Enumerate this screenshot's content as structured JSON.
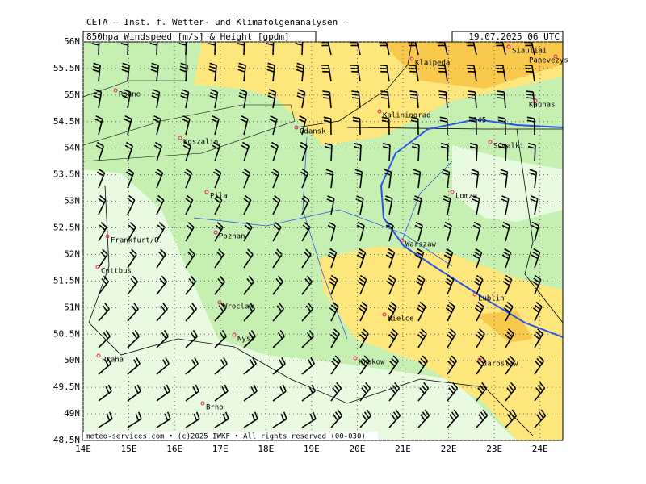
{
  "header": {
    "institute": "CETA — Inst. f. Wetter- und Klimafolgenanalysen —",
    "parameter": "850hpa Windspeed [m/s] & Height [gpdm]",
    "valid": "19.07.2025 06 UTC"
  },
  "map": {
    "xticks": [
      {
        "value": 14,
        "label": "14E"
      },
      {
        "value": 15,
        "label": "15E"
      },
      {
        "value": 16,
        "label": "16E"
      },
      {
        "value": 17,
        "label": "17E"
      },
      {
        "value": 18,
        "label": "18E"
      },
      {
        "value": 19,
        "label": "19E"
      },
      {
        "value": 20,
        "label": "20E"
      },
      {
        "value": 21,
        "label": "21E"
      },
      {
        "value": 22,
        "label": "22E"
      },
      {
        "value": 23,
        "label": "23E"
      },
      {
        "value": 24,
        "label": "24E"
      }
    ],
    "yticks": [
      {
        "value": 56,
        "label": "56N"
      },
      {
        "value": 55.5,
        "label": "55.5N"
      },
      {
        "value": 55,
        "label": "55N"
      },
      {
        "value": 54.5,
        "label": "54.5N"
      },
      {
        "value": 54,
        "label": "54N"
      },
      {
        "value": 53.5,
        "label": "53.5N"
      },
      {
        "value": 53,
        "label": "53N"
      },
      {
        "value": 52.5,
        "label": "52.5N"
      },
      {
        "value": 52,
        "label": "52N"
      },
      {
        "value": 51.5,
        "label": "51.5N"
      },
      {
        "value": 51,
        "label": "51N"
      },
      {
        "value": 50.5,
        "label": "50.5N"
      },
      {
        "value": 50,
        "label": "50N"
      },
      {
        "value": 49.5,
        "label": "49.5N"
      },
      {
        "value": 49,
        "label": "49N"
      },
      {
        "value": 48.5,
        "label": "48.5N"
      }
    ],
    "xlim": [
      14,
      24.5
    ],
    "ylim": [
      48.5,
      56
    ],
    "contour_label": "145",
    "cities": [
      "Siauliai",
      "Panevezys",
      "Klaipeda",
      "Ronne",
      "Kaunas",
      "Kaliningrad",
      "Gdansk",
      "Suwalki",
      "Koszalin",
      "Pila",
      "Lomza",
      "Poznan",
      "Frankfurt/O.",
      "Warszaw",
      "Cottbus",
      "Lublin",
      "Wroclaw",
      "Kielce",
      "Nysa",
      "Praha",
      "Krakow",
      "Jaroslaw",
      "Brno"
    ]
  },
  "footer": "meteo-services.com • (c)2025 IWKF • All rights reserved (00-030)"
}
